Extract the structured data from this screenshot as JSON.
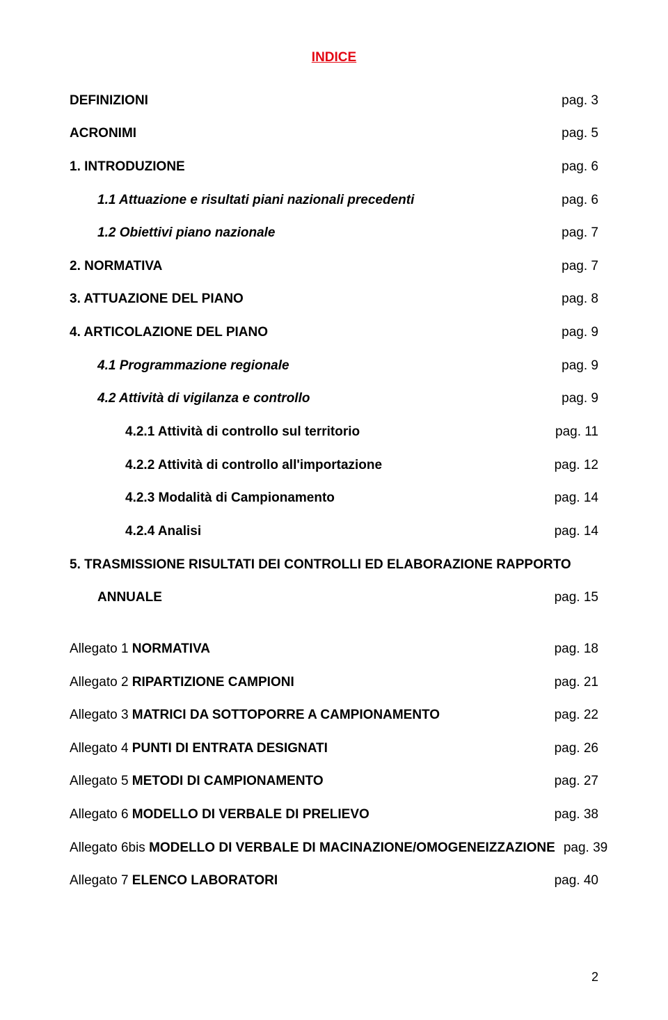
{
  "colors": {
    "title": "#e30613",
    "text": "#000000",
    "background": "#ffffff"
  },
  "title": "INDICE",
  "items": [
    {
      "label": "DEFINIZIONI",
      "page": "pag. 3",
      "bold": true,
      "indent": 0
    },
    {
      "label": "ACRONIMI",
      "page": "pag. 5",
      "bold": true,
      "indent": 0
    },
    {
      "label": "1. INTRODUZIONE",
      "page": "pag. 6",
      "bold": true,
      "indent": 0
    },
    {
      "label": "1.1 Attuazione e risultati piani nazionali precedenti",
      "page": "pag. 6",
      "bold": true,
      "italic": true,
      "indent": 1
    },
    {
      "label": "1.2 Obiettivi piano nazionale",
      "page": "pag. 7",
      "bold": true,
      "italic": true,
      "indent": 1
    },
    {
      "label": "2. NORMATIVA",
      "page": "pag. 7",
      "bold": true,
      "indent": 0
    },
    {
      "label": "3. ATTUAZIONE DEL PIANO",
      "page": "pag. 8",
      "bold": true,
      "indent": 0
    },
    {
      "label": "4. ARTICOLAZIONE DEL PIANO",
      "page": "pag. 9",
      "bold": true,
      "indent": 0
    },
    {
      "label": "4.1 Programmazione regionale",
      "page": "pag. 9",
      "bold": true,
      "italic": true,
      "indent": 1
    },
    {
      "label": "4.2 Attività di vigilanza e controllo",
      "page": "pag. 9",
      "bold": true,
      "italic": true,
      "indent": 1
    },
    {
      "label": "4.2.1 Attività di controllo sul territorio",
      "page": "pag. 11",
      "bold": true,
      "indent": 2
    },
    {
      "label": "4.2.2 Attività di controllo all'importazione",
      "page": "pag. 12",
      "bold": true,
      "indent": 2
    },
    {
      "label": "4.2.3 Modalità di Campionamento",
      "page": "pag. 14",
      "bold": true,
      "indent": 2
    },
    {
      "label": "4.2.4 Analisi",
      "page": "pag. 14",
      "bold": true,
      "indent": 2
    },
    {
      "label": "5. TRASMISSIONE RISULTATI DEI CONTROLLI ED ELABORAZIONE RAPPORTO",
      "page": "",
      "bold": true,
      "indent": 0,
      "nobreak": true
    },
    {
      "label": "ANNUALE",
      "page": "pag. 15",
      "bold": true,
      "indent": 1,
      "gapAfter": true
    }
  ],
  "annexes": [
    {
      "prefix": "Allegato 1 ",
      "title": "NORMATIVA",
      "page": "pag. 18"
    },
    {
      "prefix": "Allegato 2 ",
      "title": "RIPARTIZIONE CAMPIONI",
      "page": "pag. 21"
    },
    {
      "prefix": "Allegato 3 ",
      "title": "MATRICI DA SOTTOPORRE A CAMPIONAMENTO",
      "page": "pag. 22"
    },
    {
      "prefix": "Allegato 4 ",
      "title": "PUNTI DI ENTRATA DESIGNATI",
      "page": "pag. 26"
    },
    {
      "prefix": "Allegato 5 ",
      "title": "METODI DI CAMPIONAMENTO",
      "page": "pag. 27"
    },
    {
      "prefix": "Allegato 6 ",
      "title": "MODELLO DI VERBALE DI PRELIEVO",
      "page": "pag. 38"
    },
    {
      "prefix": "Allegato 6bis ",
      "title": "MODELLO DI VERBALE DI MACINAZIONE/OMOGENEIZZAZIONE",
      "page": "pag. 39"
    },
    {
      "prefix": "Allegato 7 ",
      "title": "ELENCO LABORATORI",
      "page": "pag. 40"
    }
  ],
  "pageNumber": "2"
}
